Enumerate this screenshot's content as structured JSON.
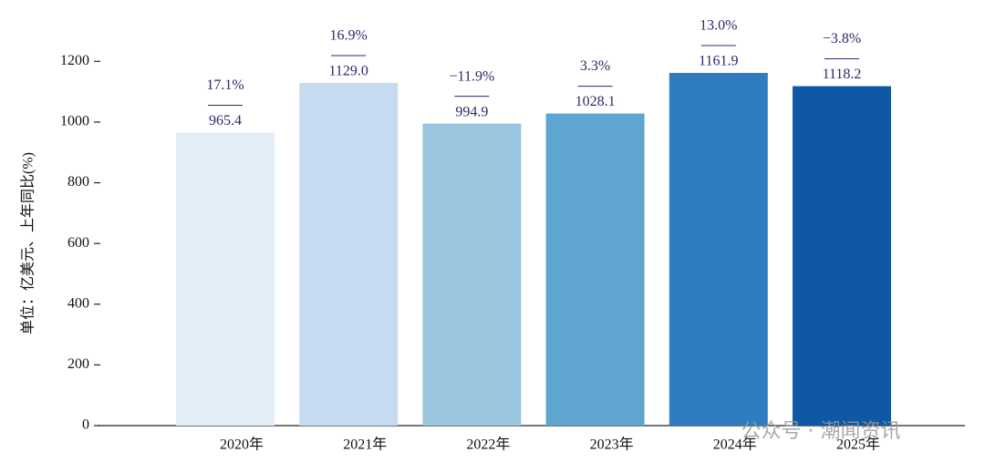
{
  "chart_data": {
    "type": "bar",
    "y_label": "单位：亿美元、上年同比(%)",
    "categories": [
      "2020年",
      "2021年",
      "2022年",
      "2023年",
      "2024年",
      "2025年"
    ],
    "values": [
      965.4,
      1129.0,
      994.9,
      1028.1,
      1161.9,
      1118.2
    ],
    "value_labels": [
      "965.4",
      "1129.0",
      "994.9",
      "1028.1",
      "1161.9",
      "1118.2"
    ],
    "yoy": [
      17.1,
      16.9,
      -11.9,
      3.3,
      13.0,
      -3.8
    ],
    "yoy_labels": [
      "17.1%",
      "16.9%",
      "−11.9%",
      "3.3%",
      "13.0%",
      "−3.8%"
    ],
    "colors": [
      "#e3edf8",
      "#c6dbef",
      "#9ac6e0",
      "#5ea5d0",
      "#2e7dbf",
      "#0e58a4"
    ],
    "ylim": [
      0,
      1300
    ],
    "yticks": [
      0,
      200,
      400,
      600,
      800,
      1000,
      1200
    ],
    "watermark": "公众号 · 潮闻资讯"
  }
}
